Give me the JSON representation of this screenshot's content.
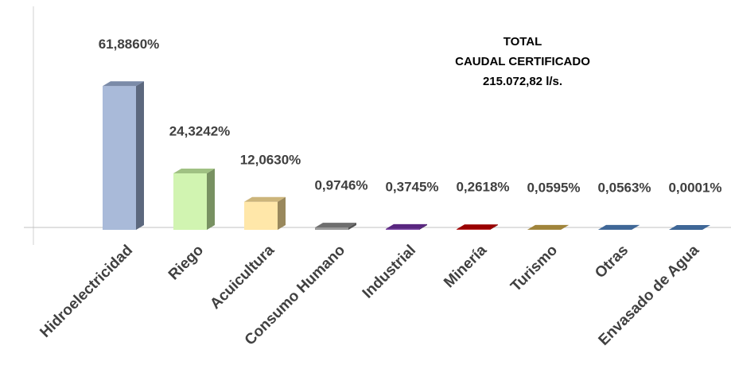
{
  "chart_data": {
    "type": "bar",
    "annotation": [
      "TOTAL",
      "CAUDAL CERTIFICADO",
      "215.072,82 l/s."
    ],
    "categories": [
      "Hidroelectricidad",
      "Riego",
      "Acuicultura",
      "Consumo Humano",
      "Industrial",
      "Minería",
      "Turismo",
      "Otras",
      "Envasado de Agua"
    ],
    "values": [
      61.886,
      24.3242,
      12.063,
      0.9746,
      0.3745,
      0.2618,
      0.0595,
      0.0563,
      0.0001
    ],
    "value_labels": [
      "61,8860%",
      "24,3242%",
      "12,0630%",
      "0,9746%",
      "0,3745%",
      "0,2618%",
      "0,0595%",
      "0,0563%",
      "0,0001%"
    ],
    "colors": [
      "#9aaed3",
      "#c9f2a4",
      "#ffe39a",
      "#8a8a8a",
      "#7030a0",
      "#c00000",
      "#c9a64a",
      "#4f81bd",
      "#4f81bd"
    ]
  }
}
